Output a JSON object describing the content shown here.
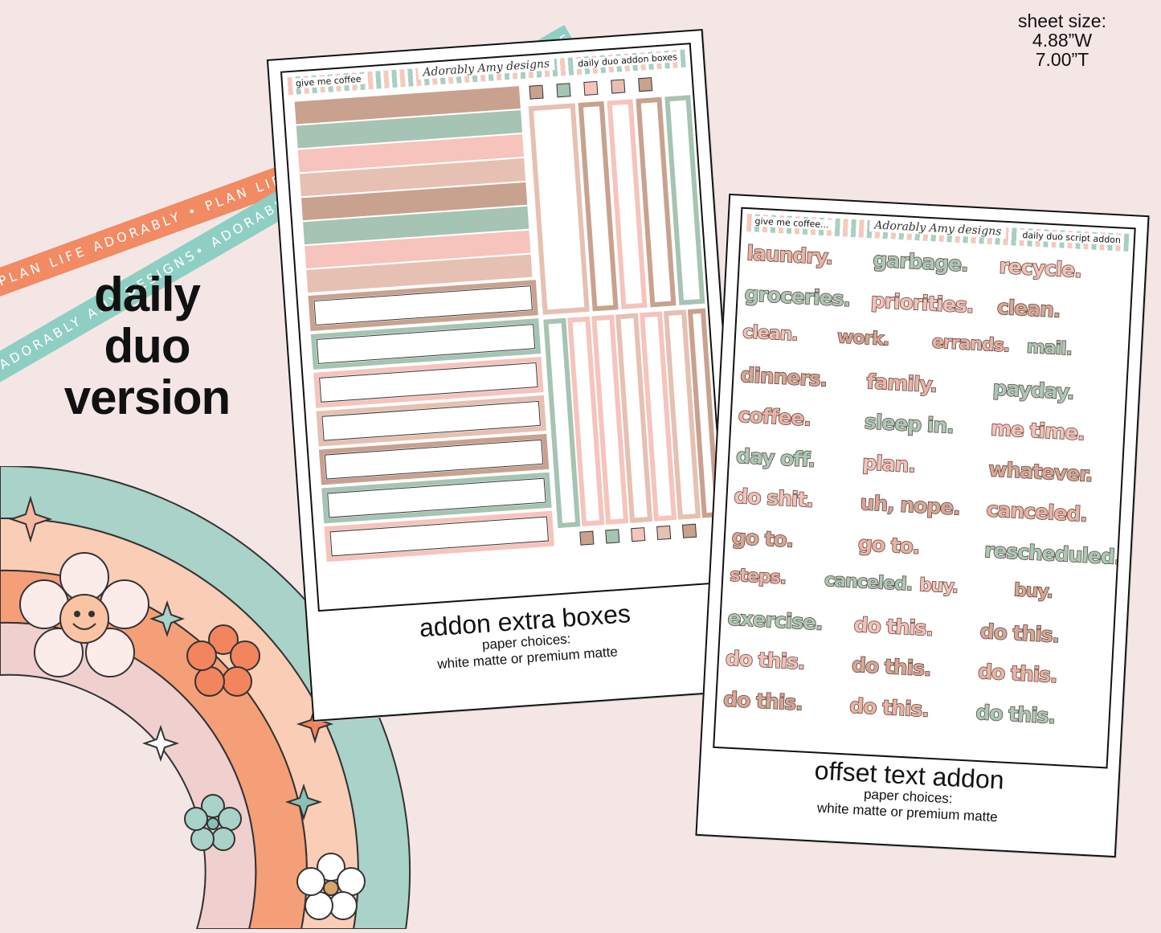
{
  "ribbons": {
    "orange_text": "PLAN LIFE ADORABLY • PLAN LIFE ADORABLY • PLAN LIFE ADORABLY •",
    "teal_text": "ADORABLY AMY DESIGNS• ADORABLY AMY DESIGNS• ADORABLY AMY DESIGNS• AD",
    "orange_color": "#f28a64",
    "teal_color": "#8fcec3"
  },
  "sheet_size": {
    "label": "sheet size:",
    "width": "4.88”W",
    "height": "7.00”T"
  },
  "version": {
    "line1": "daily",
    "line2": "duo",
    "line3": "version"
  },
  "sheet1": {
    "header_left": "give me coffee",
    "header_brand": "Adorably Amy designs",
    "header_right": "daily duo addon boxes",
    "caption_title": "addon extra boxes",
    "caption_line1": "paper choices:",
    "caption_line2": "white matte or premium matte"
  },
  "sheet2": {
    "header_left": "give me coffee...",
    "header_brand": "Adorably Amy designs",
    "header_right": "daily duo script addon",
    "caption_title": "offset text addon",
    "caption_line1": "paper choices:",
    "caption_line2": "white matte or premium matte",
    "words": [
      [
        "laundry.",
        "garbage.",
        "recycle."
      ],
      [
        "groceries.",
        "priorities.",
        "clean."
      ],
      [
        "clean.",
        "work.",
        "errands.",
        "mail."
      ],
      [
        "dinners.",
        "family.",
        "payday."
      ],
      [
        "coffee.",
        "sleep in.",
        "me time."
      ],
      [
        "day off.",
        "plan.",
        "whatever."
      ],
      [
        "do shit.",
        "uh, nope.",
        "canceled."
      ],
      [
        "go to.",
        "go to.",
        "rescheduled."
      ],
      [
        "steps.",
        "canceled.",
        "buy.",
        "buy."
      ],
      [
        "exercise.",
        "do this.",
        "do this."
      ],
      [
        "do this.",
        "do this.",
        "do this."
      ],
      [
        "do this.",
        "do this.",
        "do this."
      ]
    ]
  },
  "palette": {
    "mocha": "#c9a18f",
    "sage": "#a5c4b3",
    "pink": "#f6c3bd",
    "blush": "#e6c0b2",
    "brown": "#b68a7a"
  }
}
